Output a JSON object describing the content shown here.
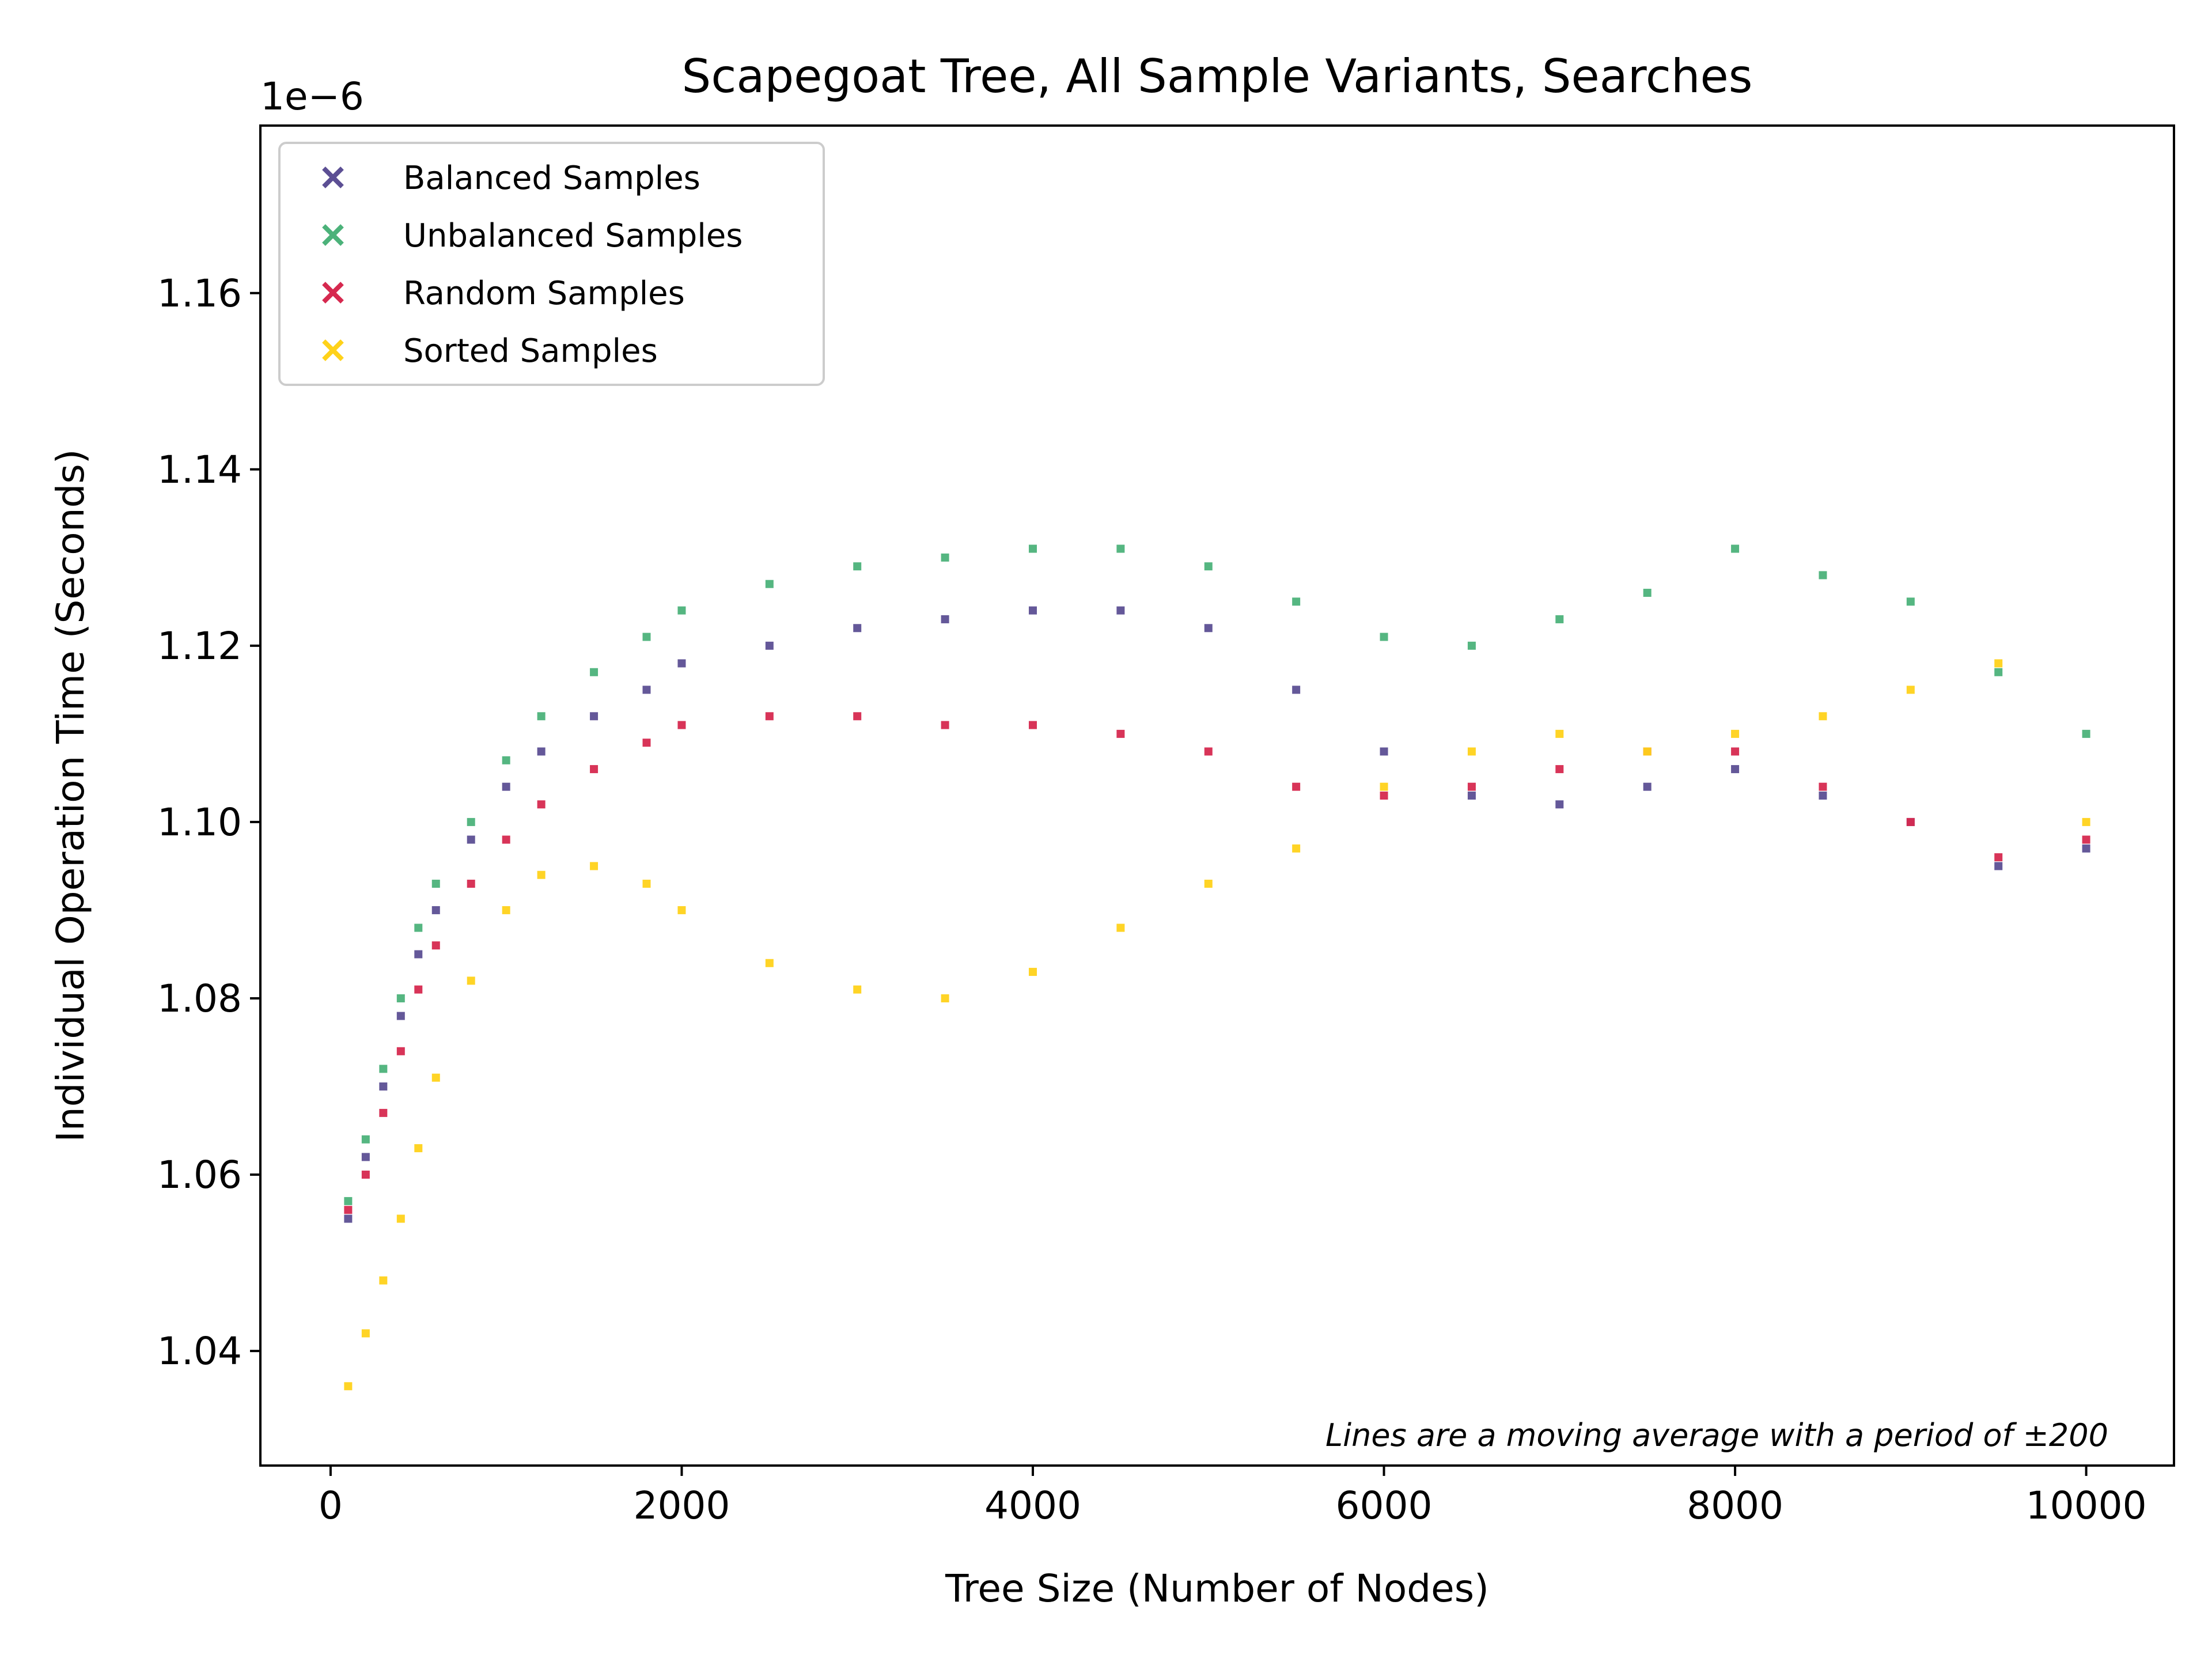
{
  "chart_data": {
    "type": "scatter",
    "title": "Scapegoat Tree, All Sample Variants, Searches",
    "xlabel": "Tree Size (Number of Nodes)",
    "ylabel": "Individual Operation Time (Seconds)",
    "y_offset_label": "1e−6",
    "xlim": [
      -400,
      10500
    ],
    "ylim": [
      1.027,
      1.179
    ],
    "x_ticks": [
      0,
      2000,
      4000,
      6000,
      8000,
      10000
    ],
    "x_tick_labels": [
      "0",
      "2000",
      "4000",
      "6000",
      "8000",
      "10000"
    ],
    "y_ticks": [
      1.04,
      1.06,
      1.08,
      1.1,
      1.12,
      1.14,
      1.16
    ],
    "y_tick_labels": [
      "1.04",
      "1.06",
      "1.08",
      "1.10",
      "1.12",
      "1.14",
      "1.16"
    ],
    "grid": false,
    "legend_position": "top-left",
    "annotation": "Lines are a moving average with a period of ±200",
    "marker": "x",
    "series": [
      {
        "name": "Balanced Samples",
        "color": "#5c4f94",
        "x": [
          100,
          200,
          300,
          400,
          500,
          600,
          800,
          1000,
          1200,
          1500,
          1800,
          2000,
          2500,
          3000,
          3500,
          4000,
          4500,
          5000,
          5500,
          6000,
          6500,
          7000,
          7500,
          8000,
          8500,
          9000,
          9500,
          10000
        ],
        "y": [
          1.055,
          1.062,
          1.07,
          1.078,
          1.085,
          1.09,
          1.098,
          1.104,
          1.108,
          1.112,
          1.115,
          1.118,
          1.12,
          1.122,
          1.123,
          1.124,
          1.124,
          1.122,
          1.115,
          1.108,
          1.103,
          1.102,
          1.104,
          1.106,
          1.103,
          1.1,
          1.095,
          1.097
        ]
      },
      {
        "name": "Unbalanced Samples",
        "color": "#4cb27a",
        "x": [
          100,
          200,
          300,
          400,
          500,
          600,
          800,
          1000,
          1200,
          1500,
          1800,
          2000,
          2500,
          3000,
          3500,
          4000,
          4500,
          5000,
          5500,
          6000,
          6500,
          7000,
          7500,
          8000,
          8500,
          9000,
          9500,
          10000
        ],
        "y": [
          1.057,
          1.064,
          1.072,
          1.08,
          1.088,
          1.093,
          1.1,
          1.107,
          1.112,
          1.117,
          1.121,
          1.124,
          1.127,
          1.129,
          1.13,
          1.131,
          1.131,
          1.129,
          1.125,
          1.121,
          1.12,
          1.123,
          1.126,
          1.131,
          1.128,
          1.125,
          1.117,
          1.11
        ]
      },
      {
        "name": "Random Samples",
        "color": "#d6294f",
        "x": [
          100,
          200,
          300,
          400,
          500,
          600,
          800,
          1000,
          1200,
          1500,
          1800,
          2000,
          2500,
          3000,
          3500,
          4000,
          4500,
          5000,
          5500,
          6000,
          6500,
          7000,
          7500,
          8000,
          8500,
          9000,
          9500,
          10000
        ],
        "y": [
          1.056,
          1.06,
          1.067,
          1.074,
          1.081,
          1.086,
          1.093,
          1.098,
          1.102,
          1.106,
          1.109,
          1.111,
          1.112,
          1.112,
          1.111,
          1.111,
          1.11,
          1.108,
          1.104,
          1.103,
          1.104,
          1.106,
          1.108,
          1.108,
          1.104,
          1.1,
          1.096,
          1.098
        ]
      },
      {
        "name": "Sorted Samples",
        "color": "#ffd21a",
        "x": [
          100,
          200,
          300,
          400,
          500,
          600,
          800,
          1000,
          1200,
          1500,
          1800,
          2000,
          2500,
          3000,
          3500,
          4000,
          4500,
          5000,
          5500,
          6000,
          6500,
          7000,
          7500,
          8000,
          8500,
          9000,
          9500,
          10000
        ],
        "y": [
          1.036,
          1.042,
          1.048,
          1.055,
          1.063,
          1.071,
          1.082,
          1.09,
          1.094,
          1.095,
          1.093,
          1.09,
          1.084,
          1.081,
          1.08,
          1.083,
          1.088,
          1.093,
          1.097,
          1.104,
          1.108,
          1.11,
          1.108,
          1.11,
          1.112,
          1.115,
          1.118,
          1.1
        ]
      }
    ]
  }
}
